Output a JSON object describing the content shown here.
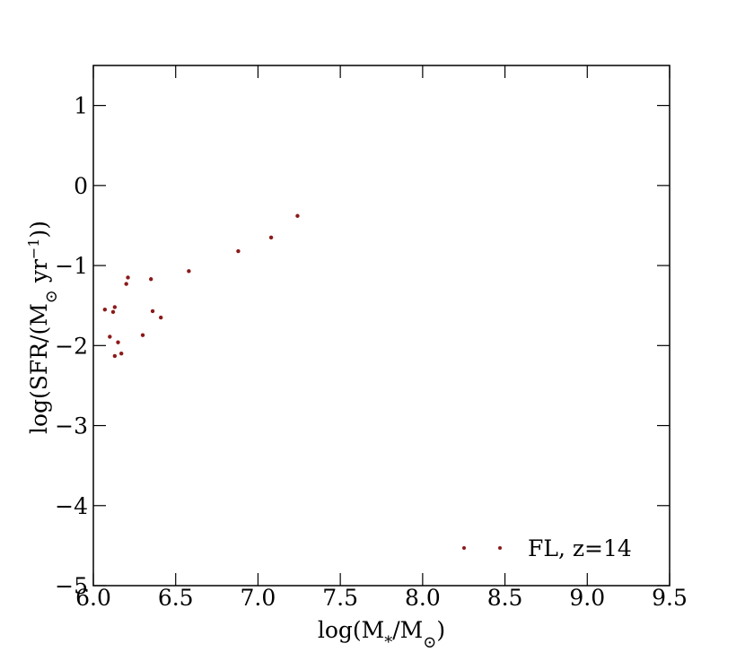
{
  "chart_data": {
    "type": "scatter",
    "xlabel": "log(M*/M⊙)",
    "ylabel": "log(SFR/(M⊙ yr−1))",
    "xlim": [
      6.0,
      9.5
    ],
    "ylim": [
      -5,
      1.5
    ],
    "xticks": [
      6.0,
      6.5,
      7.0,
      7.5,
      8.0,
      8.5,
      9.0,
      9.5
    ],
    "xtick_labels": [
      "6.0",
      "6.5",
      "7.0",
      "7.5",
      "8.0",
      "8.5",
      "9.0",
      "9.5"
    ],
    "yticks": [
      -5,
      -4,
      -3,
      -2,
      -1,
      0,
      1
    ],
    "ytick_labels": [
      "−5",
      "−4",
      "−3",
      "−2",
      "−1",
      "0",
      "1"
    ],
    "grid": false,
    "legend_position": "bottom-right",
    "series": [
      {
        "name": "FL, z=14",
        "color": "#8b1a1a",
        "points": [
          {
            "x": 6.07,
            "y": -1.55
          },
          {
            "x": 6.1,
            "y": -1.89
          },
          {
            "x": 6.12,
            "y": -1.58
          },
          {
            "x": 6.13,
            "y": -1.52
          },
          {
            "x": 6.13,
            "y": -2.13
          },
          {
            "x": 6.15,
            "y": -1.96
          },
          {
            "x": 6.17,
            "y": -2.1
          },
          {
            "x": 6.2,
            "y": -1.23
          },
          {
            "x": 6.21,
            "y": -1.15
          },
          {
            "x": 6.3,
            "y": -1.87
          },
          {
            "x": 6.35,
            "y": -1.17
          },
          {
            "x": 6.36,
            "y": -1.57
          },
          {
            "x": 6.41,
            "y": -1.65
          },
          {
            "x": 6.58,
            "y": -1.07
          },
          {
            "x": 6.88,
            "y": -0.82
          },
          {
            "x": 7.08,
            "y": -0.65
          },
          {
            "x": 7.24,
            "y": -0.38
          }
        ]
      }
    ]
  }
}
